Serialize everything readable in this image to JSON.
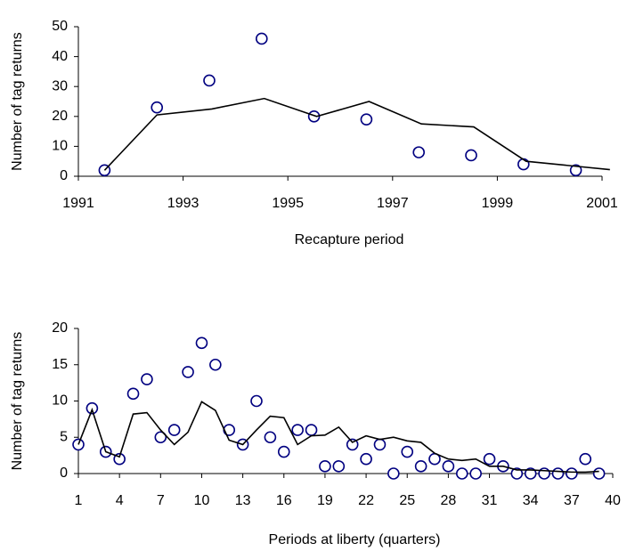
{
  "chart_data": [
    {
      "type": "scatter",
      "x_label": "Recapture period",
      "y_label": "Number of tag returns",
      "xlim": [
        1991,
        2001
      ],
      "xticks": [
        1991,
        1993,
        1995,
        1997,
        1999,
        2001
      ],
      "ylim": [
        0,
        50
      ],
      "yticks": [
        0,
        10,
        20,
        30,
        40,
        50
      ],
      "series": [
        {
          "color": "#000080",
          "line": false,
          "x": [
            1991.5,
            1992.5,
            1993.5,
            1994.5,
            1995.5,
            1996.5,
            1997.5,
            1998.5,
            1999.5,
            2000.5
          ],
          "values": [
            2,
            23,
            32,
            46,
            20,
            19,
            8,
            7,
            4,
            2
          ]
        },
        {
          "color": "#000000",
          "line": true,
          "x": [
            1991.5,
            1992.5,
            1993.55,
            1994.55,
            1995.55,
            1996.55,
            1997.55,
            1998.55,
            1999.55,
            2001.15
          ],
          "values": [
            2,
            20.5,
            22.5,
            26,
            20,
            25,
            17.5,
            16.5,
            5,
            2.2
          ]
        }
      ]
    },
    {
      "type": "scatter",
      "x_label": "Periods at liberty (quarters)",
      "y_label": "Number of tag returns",
      "xlim": [
        1,
        40
      ],
      "xticks": [
        1,
        4,
        7,
        10,
        13,
        16,
        19,
        22,
        25,
        28,
        31,
        34,
        37,
        40
      ],
      "ylim": [
        0,
        20
      ],
      "yticks": [
        0,
        5,
        10,
        15,
        20
      ],
      "series": [
        {
          "color": "#000080",
          "line": false,
          "x": [
            1,
            2,
            3,
            4,
            5,
            6,
            7,
            8,
            9,
            10,
            11,
            12,
            13,
            14,
            15,
            16,
            17,
            18,
            19,
            20,
            21,
            22,
            23,
            24,
            25,
            26,
            27,
            28,
            29,
            30,
            31,
            32,
            33,
            34,
            35,
            36,
            37,
            38,
            39
          ],
          "values": [
            4,
            9,
            3,
            2,
            11,
            13,
            5,
            6,
            14,
            18,
            15,
            6,
            4,
            10,
            5,
            3,
            6,
            6,
            1,
            1,
            4,
            2,
            4,
            0,
            3,
            1,
            2,
            1,
            0,
            0,
            2,
            1,
            0,
            0,
            0,
            0,
            0,
            2,
            0
          ]
        },
        {
          "color": "#000000",
          "line": true,
          "x": [
            1,
            2,
            3,
            4,
            5,
            6,
            7,
            8,
            9,
            10,
            11,
            12,
            13,
            14,
            15,
            16,
            17,
            18,
            19,
            20,
            21,
            22,
            23,
            24,
            25,
            26,
            27,
            28,
            29,
            30,
            31,
            32,
            33,
            34,
            35,
            36,
            37,
            38,
            39
          ],
          "values": [
            4,
            8.8,
            3,
            2.3,
            8.2,
            8.4,
            6,
            4,
            5.7,
            9.9,
            8.7,
            4.6,
            4,
            6,
            7.9,
            7.7,
            4,
            5.2,
            5.3,
            6.4,
            4.3,
            5.2,
            4.7,
            5,
            4.5,
            4.3,
            2.8,
            2,
            1.8,
            2,
            1,
            1,
            0.5,
            0.5,
            0.4,
            0.3,
            0.2,
            0.2,
            0.3
          ]
        }
      ]
    }
  ]
}
